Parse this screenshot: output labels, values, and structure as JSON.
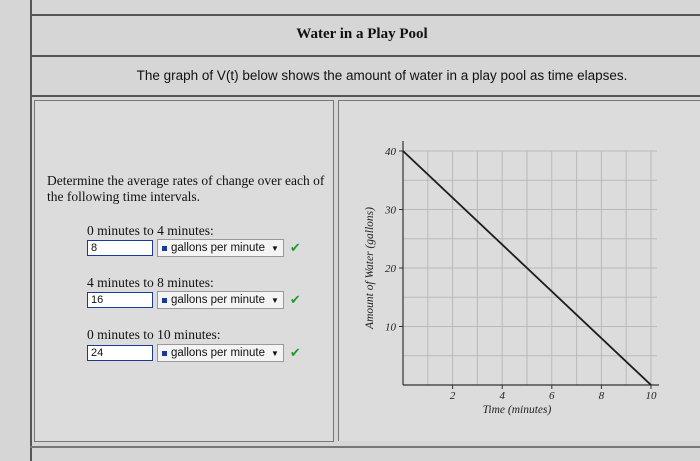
{
  "title": "Water in a Play Pool",
  "description": "The graph of V(t) below shows the amount of water in a play pool as time elapses.",
  "instructions": "Determine the average rates of change over each of the following time intervals.",
  "questions": [
    {
      "label": "0 minutes to 4 minutes:",
      "value": "8",
      "unit": "gallons per minute"
    },
    {
      "label": "4 minutes to 8 minutes:",
      "value": "16",
      "unit": "gallons per minute"
    },
    {
      "label": "0 minutes to 10 minutes:",
      "value": "24",
      "unit": "gallons per minute"
    }
  ],
  "icons": {
    "correct": "checkmark-icon",
    "dropdown": "caret-down-icon"
  },
  "colors": {
    "input_border": "#1a3a9a",
    "correct_check": "#1f9a2a"
  },
  "chart_data": {
    "type": "line",
    "xlabel": "Time (minutes)",
    "ylabel": "Amount of Water (gallons)",
    "x_ticks": [
      "2",
      "4",
      "6",
      "8",
      "10"
    ],
    "y_ticks": [
      "10",
      "20",
      "30",
      "40"
    ],
    "xlim": [
      0,
      10
    ],
    "ylim": [
      0,
      40
    ],
    "grid": true,
    "series": [
      {
        "x": [
          0,
          10
        ],
        "y": [
          40,
          0
        ]
      }
    ]
  }
}
